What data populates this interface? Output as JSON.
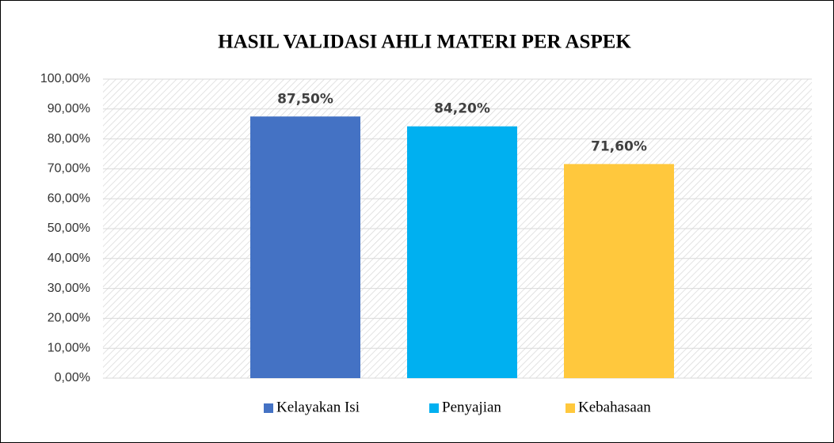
{
  "chart_data": {
    "type": "bar",
    "title": "HASIL VALIDASI AHLI MATERI PER ASPEK",
    "categories": [
      null
    ],
    "series": [
      {
        "name": "Kelayakan Isi",
        "color": "#4472c4",
        "values": [
          87.5
        ],
        "value_labels": [
          "87,50%"
        ]
      },
      {
        "name": "Penyajian",
        "color": "#00b0f0",
        "values": [
          84.2
        ],
        "value_labels": [
          "84,20%"
        ]
      },
      {
        "name": "Kebahasaan",
        "color": "#ffc83d",
        "values": [
          71.6
        ],
        "value_labels": [
          "71,60%"
        ]
      }
    ],
    "ylim": [
      0,
      100
    ],
    "yticks": [
      {
        "value": 0,
        "label": "0,00%"
      },
      {
        "value": 10,
        "label": "10,00%"
      },
      {
        "value": 20,
        "label": "20,00%"
      },
      {
        "value": 30,
        "label": "30,00%"
      },
      {
        "value": 40,
        "label": "40,00%"
      },
      {
        "value": 50,
        "label": "50,00%"
      },
      {
        "value": 60,
        "label": "60,00%"
      },
      {
        "value": 70,
        "label": "70,00%"
      },
      {
        "value": 80,
        "label": "80,00%"
      },
      {
        "value": 90,
        "label": "90,00%"
      },
      {
        "value": 100,
        "label": "100,00%"
      }
    ],
    "grid": true,
    "legend": "bottom"
  }
}
